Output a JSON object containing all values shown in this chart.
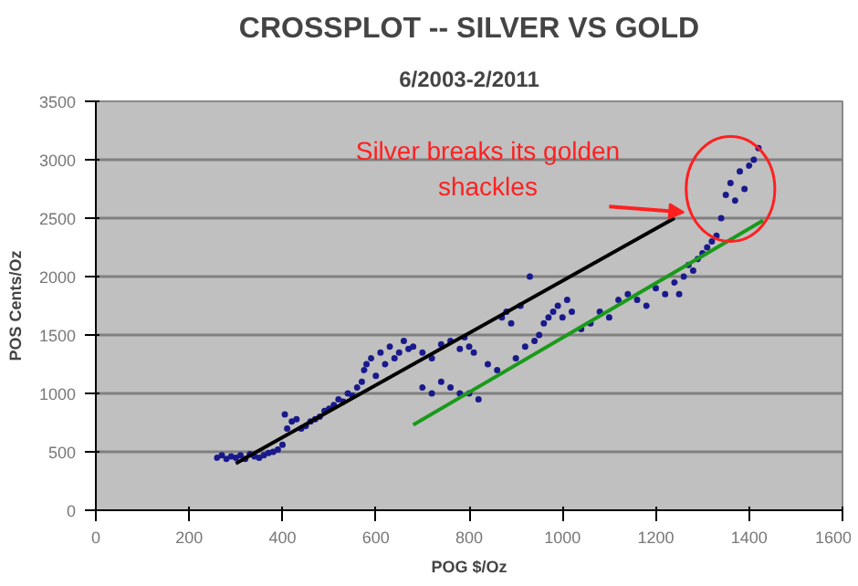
{
  "chart_data": {
    "type": "scatter",
    "title": "CROSSPLOT -- SILVER VS GOLD",
    "subtitle": "6/2003-2/2011",
    "xlabel": "POG $/Oz",
    "ylabel": "POS Cents/Oz",
    "xlim": [
      0,
      1600
    ],
    "xticks": [
      0,
      200,
      400,
      600,
      800,
      1000,
      1200,
      1400,
      1600
    ],
    "ylim": [
      0,
      3500
    ],
    "yticks": [
      0,
      500,
      1000,
      1500,
      2000,
      2500,
      3000,
      3500
    ],
    "grid": "y",
    "series": [
      {
        "marker": "circle",
        "color": "#1a1a8c",
        "x": [
          260,
          270,
          280,
          290,
          300,
          310,
          320,
          330,
          340,
          350,
          360,
          370,
          380,
          390,
          400,
          405,
          410,
          420,
          430,
          440,
          450,
          460,
          470,
          480,
          490,
          500,
          510,
          520,
          530,
          540,
          550,
          560,
          570,
          575,
          580,
          590,
          600,
          610,
          620,
          630,
          640,
          650,
          660,
          670,
          680,
          700,
          720,
          740,
          760,
          780,
          790,
          800,
          810,
          700,
          720,
          740,
          760,
          780,
          800,
          820,
          840,
          860,
          870,
          880,
          890,
          900,
          910,
          920,
          930,
          940,
          950,
          960,
          970,
          980,
          990,
          1000,
          1010,
          1020,
          1040,
          1060,
          1080,
          1100,
          1120,
          1140,
          1160,
          1180,
          1200,
          1220,
          1240,
          1250,
          1260,
          1270,
          1280,
          1290,
          1300,
          1310,
          1320,
          1330,
          1340,
          1350,
          1360,
          1370,
          1380,
          1390,
          1400,
          1410,
          1420
        ],
        "values": [
          450,
          470,
          440,
          460,
          450,
          470,
          440,
          480,
          460,
          450,
          470,
          490,
          500,
          520,
          560,
          820,
          700,
          760,
          780,
          700,
          720,
          760,
          780,
          800,
          850,
          870,
          900,
          950,
          930,
          1000,
          980,
          1050,
          1100,
          1200,
          1250,
          1300,
          1150,
          1350,
          1250,
          1400,
          1300,
          1350,
          1450,
          1380,
          1400,
          1350,
          1300,
          1420,
          1450,
          1380,
          1480,
          1400,
          1350,
          1050,
          1000,
          1100,
          1050,
          1000,
          1000,
          950,
          1250,
          1200,
          1650,
          1700,
          1600,
          1300,
          1750,
          1400,
          2000,
          1450,
          1500,
          1600,
          1650,
          1700,
          1750,
          1650,
          1800,
          1700,
          1550,
          1600,
          1700,
          1650,
          1800,
          1850,
          1800,
          1750,
          1900,
          1850,
          1950,
          1850,
          2000,
          2100,
          2050,
          2150,
          2200,
          2250,
          2300,
          2350,
          2500,
          2700,
          2800,
          2650,
          2900,
          2750,
          2950,
          3000,
          3100
        ]
      },
      {
        "type": "line",
        "marker": "none",
        "color": "#000000",
        "x": [
          300,
          1240
        ],
        "values": [
          400,
          2500
        ]
      },
      {
        "type": "line",
        "marker": "none",
        "color": "#1a9a1a",
        "x": [
          680,
          1430
        ],
        "values": [
          730,
          2480
        ]
      }
    ],
    "annotations": [
      "Silver breaks its golden shackles"
    ]
  }
}
